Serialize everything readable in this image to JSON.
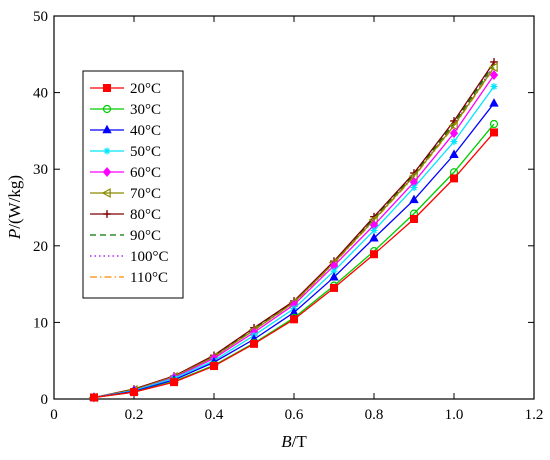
{
  "chart_data": {
    "type": "line",
    "xlabel_var": "B",
    "xlabel_unit": "/T",
    "ylabel_var": "P",
    "ylabel_unit": "/(W/kg)",
    "xlim": [
      0,
      1.2
    ],
    "ylim": [
      0,
      50
    ],
    "xticks": [
      0,
      0.2,
      0.4,
      0.6,
      0.8,
      1.0,
      1.2
    ],
    "xtick_labels": [
      "0",
      "0.2",
      "0.4",
      "0.6",
      "0.8",
      "1.0",
      "1.2"
    ],
    "yticks": [
      0,
      10,
      20,
      30,
      40,
      50
    ],
    "ytick_labels": [
      "0",
      "10",
      "20",
      "30",
      "40",
      "50"
    ],
    "grid": false,
    "legend_position": "upper-left",
    "x": [
      0.1,
      0.2,
      0.3,
      0.4,
      0.5,
      0.6,
      0.7,
      0.8,
      0.9,
      1.0,
      1.1
    ],
    "series": [
      {
        "name": "20°C",
        "color": "#ff0000",
        "marker": "square",
        "dash": "solid",
        "values": [
          0.2,
          0.9,
          2.2,
          4.3,
          7.2,
          10.4,
          14.5,
          18.9,
          23.5,
          28.8,
          34.8
        ]
      },
      {
        "name": "30°C",
        "color": "#00cc00",
        "marker": "circle-open",
        "dash": "solid",
        "values": [
          0.2,
          0.9,
          2.3,
          4.4,
          7.3,
          10.6,
          14.8,
          19.3,
          24.2,
          29.6,
          35.9
        ]
      },
      {
        "name": "40°C",
        "color": "#0000ff",
        "marker": "triangle",
        "dash": "solid",
        "values": [
          0.2,
          1.0,
          2.5,
          4.8,
          7.8,
          11.3,
          15.9,
          21.0,
          26.0,
          31.9,
          38.6
        ]
      },
      {
        "name": "50°C",
        "color": "#00e5ff",
        "marker": "asterisk",
        "dash": "solid",
        "values": [
          0.2,
          1.1,
          2.7,
          5.0,
          8.3,
          11.8,
          16.7,
          22.0,
          27.6,
          33.6,
          40.8
        ]
      },
      {
        "name": "60°C",
        "color": "#ff00ff",
        "marker": "diamond",
        "dash": "solid",
        "values": [
          0.2,
          1.1,
          2.8,
          5.3,
          8.7,
          12.3,
          17.4,
          22.7,
          28.3,
          34.7,
          42.3
        ]
      },
      {
        "name": "70°C",
        "color": "#8b8b00",
        "marker": "triangle-left-open",
        "dash": "solid",
        "values": [
          0.2,
          1.2,
          2.9,
          5.5,
          9.0,
          12.6,
          17.8,
          23.4,
          29.1,
          35.7,
          43.3
        ]
      },
      {
        "name": "80°C",
        "color": "#800000",
        "marker": "plus",
        "dash": "solid",
        "values": [
          0.2,
          1.3,
          3.0,
          5.7,
          9.3,
          12.8,
          18.0,
          23.8,
          29.5,
          36.3,
          44.0
        ]
      },
      {
        "name": "90°C",
        "color": "#007700",
        "marker": "none",
        "dash": "dash",
        "values": [
          0.2,
          1.2,
          2.9,
          5.6,
          9.1,
          12.7,
          17.9,
          23.6,
          29.3,
          36.0,
          43.7
        ]
      },
      {
        "name": "100°C",
        "color": "#9900ff",
        "marker": "none",
        "dash": "dot",
        "values": [
          0.2,
          1.2,
          2.9,
          5.5,
          9.0,
          12.6,
          17.8,
          23.5,
          29.2,
          35.8,
          43.5
        ]
      },
      {
        "name": "110°C",
        "color": "#ff8800",
        "marker": "none",
        "dash": "dashdot",
        "values": [
          0.2,
          1.2,
          2.9,
          5.5,
          9.0,
          12.5,
          17.7,
          23.3,
          29.0,
          35.6,
          43.2
        ]
      }
    ]
  }
}
